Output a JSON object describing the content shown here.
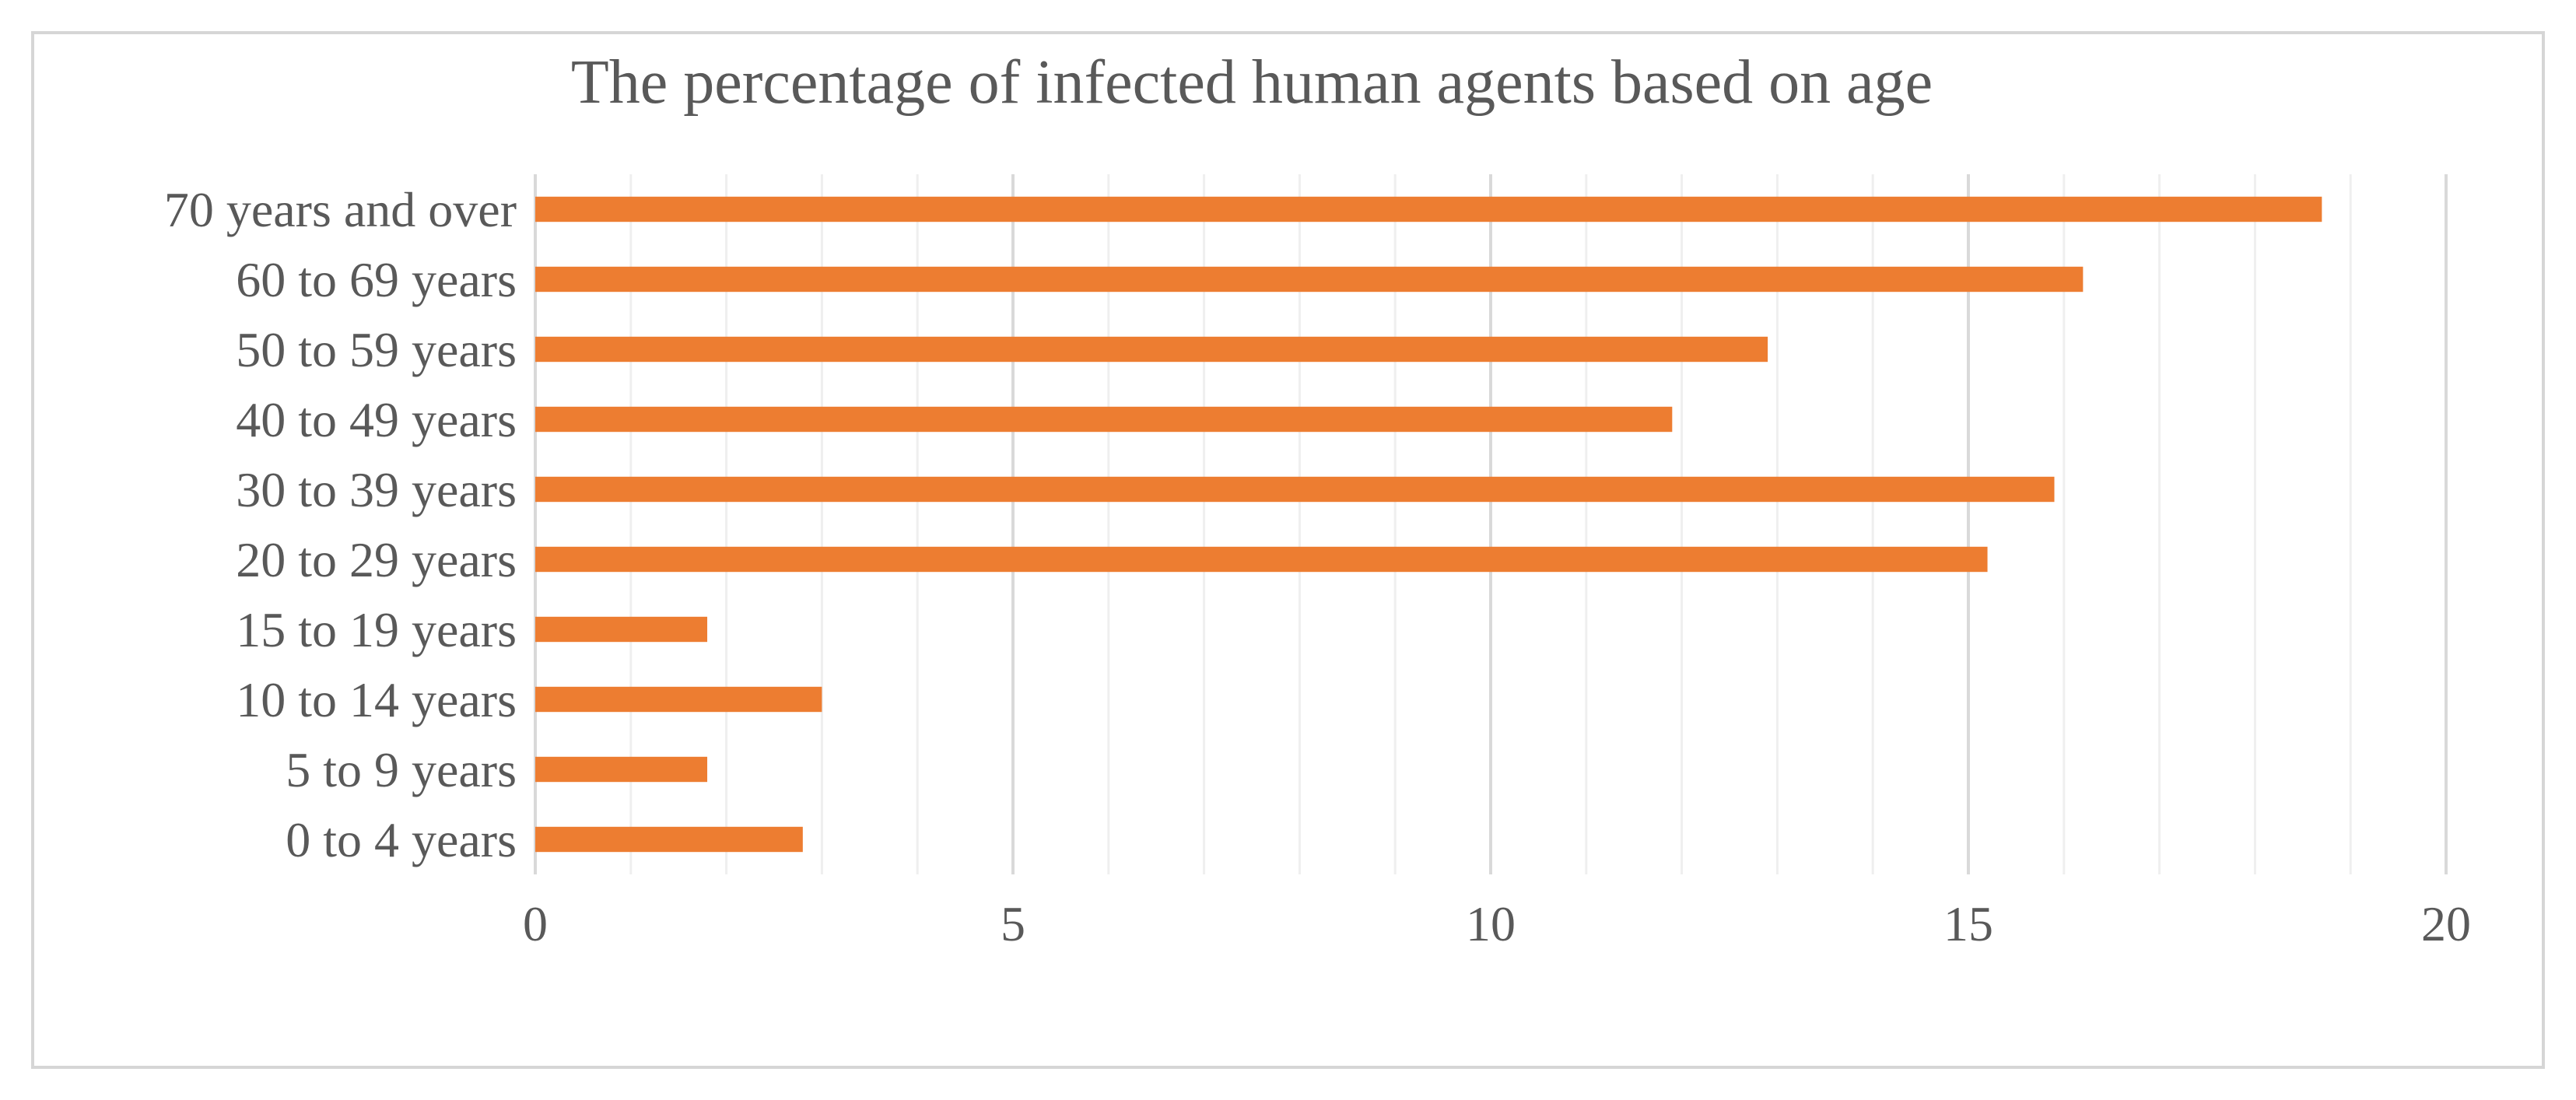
{
  "chart_data": {
    "type": "bar",
    "orientation": "horizontal",
    "title": "The percentage of infected human agents based on age",
    "xlabel": "",
    "ylabel": "",
    "categories": [
      "0 to 4 years",
      "5 to 9 years",
      "10 to 14 years",
      "15 to 19 years",
      "20 to 29 years",
      "30 to 39 years",
      "40 to 49 years",
      "50 to 59 years",
      "60 to 69 years",
      "70 years and over"
    ],
    "values": [
      2.8,
      1.8,
      3.0,
      1.8,
      15.2,
      15.9,
      11.9,
      12.9,
      16.2,
      18.7
    ],
    "xlim": [
      0,
      20
    ],
    "xticks": [
      "0",
      "5",
      "10",
      "15",
      "20"
    ],
    "major_tick_step": 5,
    "minor_tick_step": 1,
    "grid": true,
    "legend": "none",
    "bar_color": "#ED7D31"
  }
}
